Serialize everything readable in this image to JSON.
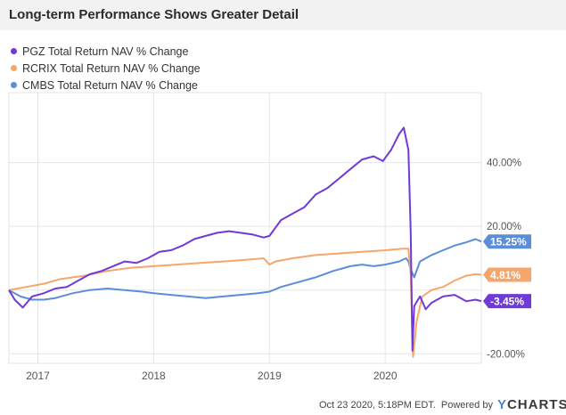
{
  "header": {
    "title": "Long-term Performance Shows Greater Detail"
  },
  "footer": {
    "timestamp": "Oct 23 2020, 5:18PM EDT.",
    "powered_by": "Powered by",
    "brand_y": "Y",
    "brand_rest": "CHARTS"
  },
  "chart_data": {
    "type": "line",
    "title": "Long-term Performance Shows Greater Detail",
    "xlabel": "",
    "ylabel": "",
    "x_ticks": [
      "2017",
      "2018",
      "2019",
      "2020"
    ],
    "x_tick_years": [
      2017.0,
      2018.0,
      2019.0,
      2020.0
    ],
    "xlim": [
      2016.75,
      2020.83
    ],
    "ylim": [
      -23,
      62
    ],
    "y_ticks": [
      40,
      20,
      -20
    ],
    "y_tick_labels": [
      "40.00%",
      "20.00%",
      "-20.00%"
    ],
    "grid": true,
    "legend_position": "top-left",
    "series": [
      {
        "name": "PGZ Total Return NAV % Change",
        "color": "#6f3ad6",
        "end_label": "-3.45%",
        "points": [
          [
            2016.75,
            0
          ],
          [
            2016.8,
            -3
          ],
          [
            2016.87,
            -5.5
          ],
          [
            2016.95,
            -2
          ],
          [
            2017.05,
            -1
          ],
          [
            2017.15,
            0.5
          ],
          [
            2017.25,
            1
          ],
          [
            2017.35,
            3
          ],
          [
            2017.45,
            5
          ],
          [
            2017.55,
            6
          ],
          [
            2017.65,
            7.5
          ],
          [
            2017.75,
            9
          ],
          [
            2017.85,
            8.5
          ],
          [
            2017.95,
            10
          ],
          [
            2018.05,
            12
          ],
          [
            2018.15,
            12.5
          ],
          [
            2018.25,
            14
          ],
          [
            2018.35,
            16
          ],
          [
            2018.45,
            17
          ],
          [
            2018.55,
            18
          ],
          [
            2018.65,
            18.5
          ],
          [
            2018.75,
            18
          ],
          [
            2018.85,
            17.5
          ],
          [
            2018.95,
            16.5
          ],
          [
            2019.0,
            17
          ],
          [
            2019.1,
            22
          ],
          [
            2019.2,
            24
          ],
          [
            2019.3,
            26
          ],
          [
            2019.4,
            30
          ],
          [
            2019.5,
            32
          ],
          [
            2019.6,
            35
          ],
          [
            2019.7,
            38
          ],
          [
            2019.8,
            41
          ],
          [
            2019.9,
            42
          ],
          [
            2019.98,
            40.5
          ],
          [
            2020.05,
            44
          ],
          [
            2020.12,
            49
          ],
          [
            2020.16,
            51
          ],
          [
            2020.2,
            44
          ],
          [
            2020.22,
            18
          ],
          [
            2020.235,
            -19
          ],
          [
            2020.25,
            -5
          ],
          [
            2020.3,
            -2
          ],
          [
            2020.35,
            -6
          ],
          [
            2020.4,
            -4
          ],
          [
            2020.5,
            -2
          ],
          [
            2020.6,
            -1.5
          ],
          [
            2020.7,
            -3.5
          ],
          [
            2020.78,
            -3
          ],
          [
            2020.83,
            -3.45
          ]
        ]
      },
      {
        "name": "RCRIX Total Return NAV % Change",
        "color": "#f7a66b",
        "end_label": "4.81%",
        "points": [
          [
            2016.75,
            0
          ],
          [
            2016.9,
            1
          ],
          [
            2017.05,
            2
          ],
          [
            2017.2,
            3.5
          ],
          [
            2017.4,
            4.5
          ],
          [
            2017.6,
            6
          ],
          [
            2017.8,
            7
          ],
          [
            2018.0,
            7.5
          ],
          [
            2018.2,
            8
          ],
          [
            2018.4,
            8.5
          ],
          [
            2018.6,
            9
          ],
          [
            2018.8,
            9.5
          ],
          [
            2018.95,
            10
          ],
          [
            2019.0,
            8
          ],
          [
            2019.05,
            9
          ],
          [
            2019.2,
            10
          ],
          [
            2019.4,
            11
          ],
          [
            2019.6,
            11.5
          ],
          [
            2019.8,
            12
          ],
          [
            2020.0,
            12.5
          ],
          [
            2020.15,
            13
          ],
          [
            2020.2,
            13
          ],
          [
            2020.22,
            5
          ],
          [
            2020.24,
            -21
          ],
          [
            2020.27,
            -10
          ],
          [
            2020.32,
            -2
          ],
          [
            2020.4,
            0
          ],
          [
            2020.5,
            1
          ],
          [
            2020.6,
            3
          ],
          [
            2020.7,
            4.5
          ],
          [
            2020.78,
            5
          ],
          [
            2020.83,
            4.81
          ]
        ]
      },
      {
        "name": "CMBS Total Return NAV % Change",
        "color": "#5b8dd9",
        "end_label": "15.25%",
        "points": [
          [
            2016.75,
            0
          ],
          [
            2016.85,
            -2
          ],
          [
            2016.95,
            -3
          ],
          [
            2017.05,
            -3
          ],
          [
            2017.15,
            -2.5
          ],
          [
            2017.3,
            -1
          ],
          [
            2017.45,
            0
          ],
          [
            2017.6,
            0.5
          ],
          [
            2017.75,
            0
          ],
          [
            2017.9,
            -0.5
          ],
          [
            2018.0,
            -1
          ],
          [
            2018.15,
            -1.5
          ],
          [
            2018.3,
            -2
          ],
          [
            2018.45,
            -2.5
          ],
          [
            2018.6,
            -2
          ],
          [
            2018.75,
            -1.5
          ],
          [
            2018.9,
            -1
          ],
          [
            2019.0,
            -0.5
          ],
          [
            2019.1,
            1
          ],
          [
            2019.25,
            2.5
          ],
          [
            2019.4,
            4
          ],
          [
            2019.55,
            6
          ],
          [
            2019.7,
            7.5
          ],
          [
            2019.8,
            8
          ],
          [
            2019.9,
            7.5
          ],
          [
            2020.0,
            8
          ],
          [
            2020.12,
            9
          ],
          [
            2020.18,
            10
          ],
          [
            2020.2,
            9
          ],
          [
            2020.22,
            6.5
          ],
          [
            2020.25,
            4
          ],
          [
            2020.3,
            9
          ],
          [
            2020.4,
            11
          ],
          [
            2020.5,
            12.5
          ],
          [
            2020.6,
            14
          ],
          [
            2020.7,
            15
          ],
          [
            2020.78,
            16
          ],
          [
            2020.83,
            15.25
          ]
        ]
      }
    ]
  }
}
